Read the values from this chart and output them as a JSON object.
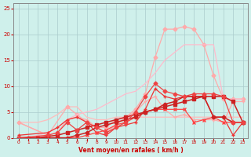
{
  "bg_color": "#cff0eb",
  "grid_color": "#aacccc",
  "xlabel": "Vent moyen/en rafales ( km/h )",
  "xlim": [
    -0.5,
    23.5
  ],
  "ylim": [
    0,
    26
  ],
  "xtick_vals": [
    0,
    1,
    2,
    3,
    4,
    5,
    6,
    7,
    8,
    9,
    10,
    11,
    12,
    13,
    14,
    15,
    16,
    17,
    18,
    19,
    20,
    21,
    22,
    23
  ],
  "ytick_vals": [
    0,
    5,
    10,
    15,
    20,
    25
  ],
  "lines": [
    {
      "x": [
        0,
        1,
        2,
        3,
        4,
        5,
        6,
        7,
        8,
        9,
        10,
        11,
        12,
        13,
        14,
        15,
        16,
        17,
        18,
        19,
        20,
        21,
        22,
        23
      ],
      "y": [
        3.0,
        3.0,
        3.0,
        3.5,
        4.5,
        6.0,
        6.0,
        4.0,
        3.5,
        3.5,
        4.0,
        4.0,
        4.0,
        4.0,
        4.0,
        4.0,
        4.0,
        4.0,
        4.0,
        4.0,
        4.0,
        4.0,
        4.0,
        4.0
      ],
      "color": "#ffbbbb",
      "lw": 0.9,
      "marker": null,
      "ms": 2.5
    },
    {
      "x": [
        0,
        3,
        5,
        6,
        7,
        8,
        9,
        10,
        11,
        12,
        13,
        14,
        15,
        16,
        17,
        18,
        19,
        20,
        21,
        22,
        23
      ],
      "y": [
        3.0,
        0.5,
        6.0,
        4.5,
        3.0,
        2.0,
        2.0,
        3.5,
        4.0,
        5.5,
        8.5,
        15.5,
        21.0,
        21.0,
        21.5,
        21.0,
        18.0,
        12.0,
        7.5,
        7.5,
        7.5
      ],
      "color": "#ffaaaa",
      "lw": 0.9,
      "marker": "D",
      "ms": 2.5
    },
    {
      "x": [
        0,
        1,
        2,
        3,
        4,
        5,
        6,
        7,
        8,
        9,
        10,
        11,
        12,
        13,
        14,
        15,
        16,
        17,
        18,
        19,
        20,
        21,
        22,
        23
      ],
      "y": [
        0.0,
        0.0,
        0.5,
        1.0,
        2.0,
        3.5,
        4.5,
        5.0,
        5.5,
        6.5,
        7.5,
        8.5,
        9.0,
        10.5,
        12.5,
        15.0,
        16.5,
        18.0,
        18.0,
        18.0,
        18.0,
        7.5,
        7.5,
        7.5
      ],
      "color": "#ffbbcc",
      "lw": 0.9,
      "marker": null,
      "ms": 2.5
    },
    {
      "x": [
        0,
        3,
        4,
        5,
        6,
        7,
        8,
        9,
        10,
        11,
        12,
        13,
        14,
        15,
        16,
        17,
        18,
        19,
        20,
        21,
        22,
        23
      ],
      "y": [
        3.0,
        0.5,
        1.0,
        3.5,
        4.0,
        3.5,
        2.0,
        1.0,
        2.5,
        4.0,
        5.0,
        7.0,
        8.0,
        5.5,
        4.0,
        4.5,
        3.5,
        3.5,
        3.5,
        3.0,
        7.0,
        7.0
      ],
      "color": "#ffaaaa",
      "lw": 0.9,
      "marker": "+",
      "ms": 3.5
    },
    {
      "x": [
        0,
        3,
        4,
        5,
        6,
        7,
        8,
        9,
        10,
        11,
        12,
        13,
        14,
        15,
        16,
        17,
        18,
        19,
        20,
        21,
        22,
        23
      ],
      "y": [
        0.5,
        1.0,
        2.0,
        3.5,
        4.0,
        3.0,
        1.0,
        0.5,
        2.0,
        2.5,
        3.0,
        5.5,
        9.5,
        8.0,
        7.5,
        8.0,
        8.0,
        8.0,
        4.0,
        4.0,
        0.5,
        3.0
      ],
      "color": "#ee3333",
      "lw": 0.9,
      "marker": "+",
      "ms": 3.5
    },
    {
      "x": [
        0,
        1,
        2,
        3,
        4,
        5,
        6,
        7,
        8,
        9,
        10,
        11,
        12,
        13,
        14,
        15,
        16,
        17,
        18,
        19,
        20,
        21,
        22,
        23
      ],
      "y": [
        0.0,
        0.0,
        0.0,
        0.0,
        0.0,
        0.0,
        0.0,
        0.5,
        1.0,
        1.5,
        2.5,
        3.0,
        4.0,
        5.0,
        5.5,
        5.5,
        5.5,
        5.5,
        3.0,
        3.5,
        4.0,
        3.0,
        3.0,
        3.0
      ],
      "color": "#ff4444",
      "lw": 0.9,
      "marker": "x",
      "ms": 3.0
    },
    {
      "x": [
        0,
        1,
        2,
        3,
        4,
        5,
        6,
        7,
        8,
        9,
        10,
        11,
        12,
        13,
        14,
        15,
        16,
        17,
        18,
        19,
        20,
        21,
        22,
        23
      ],
      "y": [
        0.0,
        0.0,
        0.0,
        0.0,
        0.0,
        0.0,
        0.5,
        1.0,
        2.0,
        2.5,
        3.0,
        3.5,
        4.0,
        5.0,
        5.5,
        6.5,
        7.0,
        8.0,
        8.0,
        8.0,
        4.0,
        4.0,
        3.0,
        3.0
      ],
      "color": "#cc2222",
      "lw": 1.1,
      "marker": "D",
      "ms": 2.5
    },
    {
      "x": [
        0,
        1,
        2,
        3,
        4,
        5,
        6,
        7,
        8,
        9,
        10,
        11,
        12,
        13,
        14,
        15,
        16,
        17,
        18,
        19,
        20,
        21,
        22,
        23
      ],
      "y": [
        0.0,
        0.0,
        0.0,
        0.3,
        0.5,
        1.0,
        1.5,
        2.0,
        2.5,
        3.0,
        3.5,
        4.0,
        4.5,
        5.0,
        5.5,
        6.0,
        6.5,
        7.0,
        7.5,
        8.0,
        8.0,
        8.0,
        7.0,
        3.0
      ],
      "color": "#cc2222",
      "lw": 1.1,
      "marker": "s",
      "ms": 2.5
    },
    {
      "x": [
        0,
        3,
        4,
        5,
        6,
        7,
        8,
        9,
        10,
        11,
        12,
        13,
        14,
        15,
        16,
        17,
        18,
        19,
        20,
        21,
        22,
        23
      ],
      "y": [
        0.0,
        0.5,
        1.0,
        3.0,
        1.5,
        3.0,
        2.0,
        1.0,
        2.0,
        3.0,
        5.0,
        8.0,
        10.5,
        9.0,
        8.5,
        8.0,
        8.5,
        8.5,
        8.5,
        8.0,
        3.0,
        3.0
      ],
      "color": "#ee4444",
      "lw": 0.9,
      "marker": "D",
      "ms": 2.5
    }
  ]
}
